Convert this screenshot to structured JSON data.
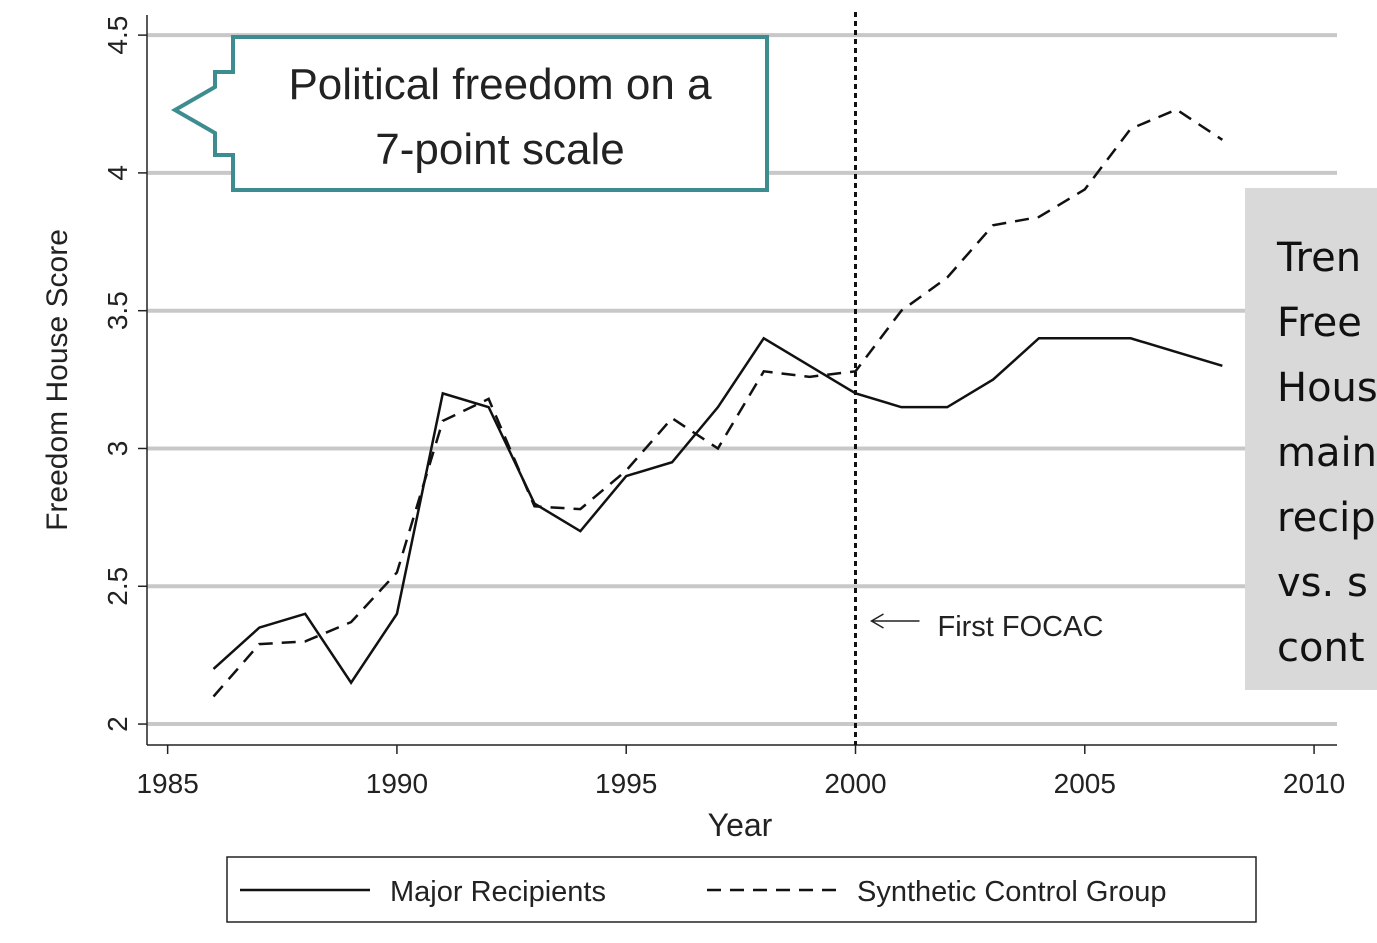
{
  "chart_data": {
    "type": "line",
    "x_label": "Year",
    "y_label": "Freedom House Score",
    "x": [
      1986,
      1987,
      1988,
      1989,
      1990,
      1991,
      1992,
      1993,
      1994,
      1995,
      1996,
      1997,
      1998,
      1999,
      2000,
      2001,
      2002,
      2003,
      2004,
      2005,
      2006,
      2007,
      2008
    ],
    "series": [
      {
        "name": "Major Recipients",
        "color": "#111111",
        "dash": "solid",
        "values": [
          2.2,
          2.35,
          2.4,
          2.15,
          2.4,
          3.2,
          3.15,
          2.8,
          2.7,
          2.9,
          2.95,
          3.15,
          3.4,
          3.3,
          3.2,
          3.15,
          3.15,
          3.25,
          3.4,
          3.4,
          3.4,
          3.35,
          3.3
        ]
      },
      {
        "name": "Synthetic Control Group",
        "color": "#111111",
        "dash": "dashed",
        "values": [
          2.1,
          2.29,
          2.3,
          2.37,
          2.55,
          3.1,
          3.18,
          2.79,
          2.78,
          2.92,
          3.11,
          3.0,
          3.28,
          3.26,
          3.28,
          3.5,
          3.62,
          3.81,
          3.84,
          3.94,
          4.16,
          4.23,
          4.12
        ]
      }
    ],
    "xlim": [
      1984.55,
      2010.5
    ],
    "xticks": [
      1985,
      1990,
      1995,
      2000,
      2005,
      2010
    ],
    "ylim": [
      1.924,
      4.573
    ],
    "yticks": [
      2,
      2.5,
      3,
      3.5,
      4,
      4.5
    ],
    "grid": true,
    "legend": "bottom",
    "vline": {
      "x": 2000,
      "label": "First FOCAC"
    },
    "callout": [
      "Political freedom on a",
      "7-point scale"
    ],
    "side_note": [
      "Tren",
      "Free",
      "Hous",
      "main",
      "recip",
      "vs. s",
      "cont"
    ]
  }
}
